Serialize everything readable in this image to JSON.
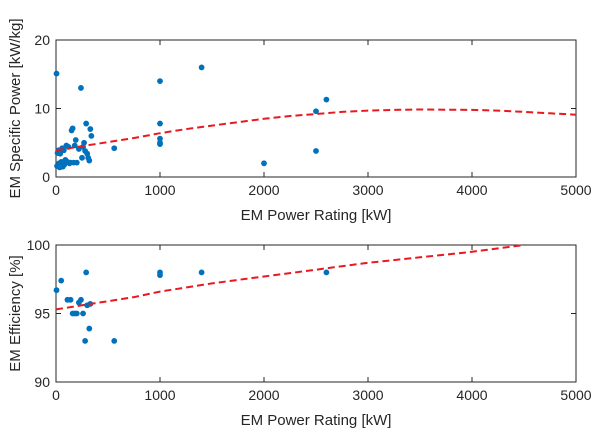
{
  "chart_data": [
    {
      "type": "scatter",
      "xlabel": "EM Power Rating [kW]",
      "ylabel": "EM Specific Power [kW/kg]",
      "xlim": [
        0,
        5000
      ],
      "ylim": [
        0,
        20
      ],
      "xticks": [
        0,
        1000,
        2000,
        3000,
        4000,
        5000
      ],
      "yticks": [
        0,
        10,
        20
      ],
      "grid": false,
      "colors": {
        "points": "#0072BD",
        "trend": "#E8191F"
      },
      "series": [
        {
          "type": "scatter",
          "x": [
            5,
            10,
            15,
            20,
            25,
            30,
            35,
            40,
            45,
            50,
            55,
            60,
            65,
            70,
            75,
            80,
            90,
            100,
            110,
            120,
            130,
            140,
            150,
            160,
            170,
            180,
            190,
            200,
            220,
            240,
            250,
            260,
            270,
            280,
            290,
            300,
            310,
            320,
            330,
            340,
            560,
            1000,
            1000,
            1000,
            1000,
            1000,
            1400,
            2000,
            2500,
            2500,
            2600
          ],
          "y": [
            15.1,
            1.6,
            3.5,
            3.8,
            3.9,
            2.0,
            1.4,
            3.4,
            1.5,
            2.2,
            4.0,
            4.2,
            1.5,
            2.1,
            3.9,
            1.8,
            2.5,
            4.6,
            2.2,
            4.4,
            2.0,
            2.1,
            6.8,
            7.1,
            2.1,
            4.6,
            5.4,
            2.1,
            4.1,
            13.0,
            2.8,
            4.4,
            5.0,
            3.8,
            7.8,
            3.4,
            2.8,
            2.4,
            7.0,
            6.0,
            4.2,
            14.0,
            7.8,
            5.6,
            5.0,
            4.8,
            16.0,
            2.0,
            3.8,
            9.6,
            11.3
          ]
        },
        {
          "type": "line",
          "style": "dashed",
          "x": [
            0,
            250,
            500,
            750,
            1000,
            1250,
            1500,
            1750,
            2000,
            2250,
            2500,
            2750,
            3000,
            3250,
            3500,
            3750,
            4000,
            4250,
            4500,
            4750,
            5000
          ],
          "y": [
            3.9,
            4.5,
            5.1,
            5.7,
            6.4,
            7.0,
            7.5,
            8.0,
            8.5,
            8.9,
            9.2,
            9.5,
            9.7,
            9.8,
            9.85,
            9.83,
            9.8,
            9.7,
            9.5,
            9.3,
            9.1
          ]
        }
      ]
    },
    {
      "type": "scatter",
      "xlabel": "EM Power Rating [kW]",
      "ylabel": "EM Efficiency [%]",
      "xlim": [
        0,
        5000
      ],
      "ylim": [
        90,
        100
      ],
      "xticks": [
        0,
        1000,
        2000,
        3000,
        4000,
        5000
      ],
      "yticks": [
        90,
        95,
        100
      ],
      "grid": false,
      "colors": {
        "points": "#0072BD",
        "trend": "#E8191F"
      },
      "series": [
        {
          "type": "scatter",
          "x": [
            5,
            50,
            110,
            140,
            160,
            180,
            200,
            220,
            240,
            260,
            280,
            290,
            300,
            320,
            330,
            560,
            1000,
            1000,
            1400,
            2600
          ],
          "y": [
            96.7,
            97.4,
            96.0,
            96.0,
            95.0,
            95.0,
            95.0,
            95.8,
            96.0,
            95.0,
            93.0,
            98.0,
            95.6,
            93.9,
            95.7,
            93.0,
            98.0,
            97.8,
            98.0,
            98.0
          ]
        },
        {
          "type": "line",
          "style": "dashed",
          "x": [
            0,
            250,
            500,
            750,
            1000,
            1250,
            1500,
            1750,
            2000,
            2250,
            2500,
            2750,
            3000,
            3250,
            3500,
            3750,
            4000,
            4250,
            4500
          ],
          "y": [
            95.3,
            95.6,
            95.9,
            96.2,
            96.6,
            96.9,
            97.2,
            97.45,
            97.7,
            97.95,
            98.2,
            98.45,
            98.7,
            98.9,
            99.1,
            99.3,
            99.5,
            99.75,
            100.0
          ]
        }
      ]
    }
  ]
}
